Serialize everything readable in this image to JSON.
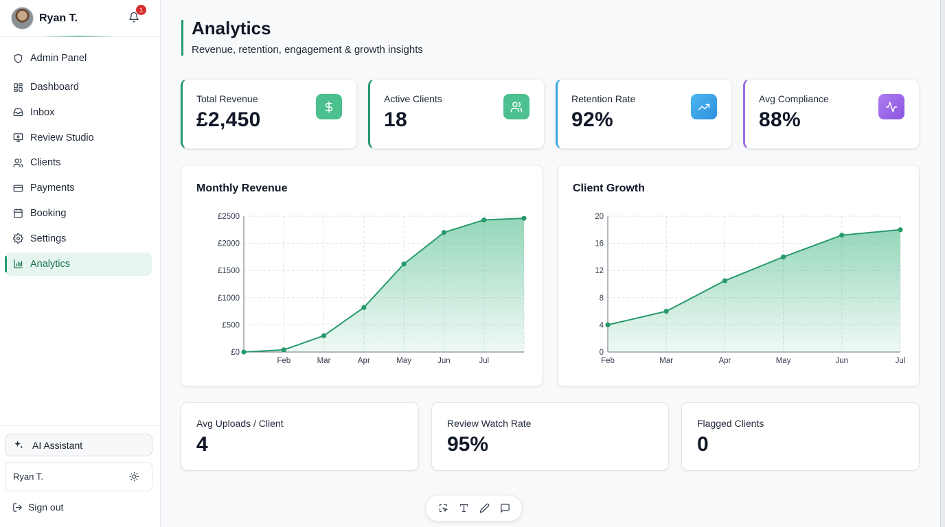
{
  "sidebar": {
    "user_name": "Ryan T.",
    "notification_count": "1",
    "items": [
      {
        "label": "Admin Panel",
        "icon": "shield-icon"
      },
      {
        "label": "Dashboard",
        "icon": "grid-icon"
      },
      {
        "label": "Inbox",
        "icon": "inbox-icon"
      },
      {
        "label": "Review Studio",
        "icon": "monitor-icon"
      },
      {
        "label": "Clients",
        "icon": "users-icon"
      },
      {
        "label": "Payments",
        "icon": "credit-card-icon"
      },
      {
        "label": "Booking",
        "icon": "calendar-icon"
      },
      {
        "label": "Settings",
        "icon": "gear-icon"
      },
      {
        "label": "Analytics",
        "icon": "bar-chart-icon",
        "active": true
      }
    ],
    "ai_assistant_label": "AI Assistant",
    "footer_user": "Ryan T.",
    "sign_out_label": "Sign out"
  },
  "header": {
    "title": "Analytics",
    "subtitle": "Revenue, retention, engagement & growth insights"
  },
  "stats": [
    {
      "label": "Total Revenue",
      "value": "£2,450",
      "icon": "dollar-icon",
      "color": "#4cc08e"
    },
    {
      "label": "Active Clients",
      "value": "18",
      "icon": "users-icon",
      "color": "#4cc08e"
    },
    {
      "label": "Retention Rate",
      "value": "92%",
      "icon": "trending-up-icon",
      "color": "#3ba6e6"
    },
    {
      "label": "Avg Compliance",
      "value": "88%",
      "icon": "activity-icon",
      "color": "#9b6ae6"
    }
  ],
  "mini_stats": [
    {
      "label": "Avg Uploads / Client",
      "value": "4"
    },
    {
      "label": "Review Watch Rate",
      "value": "95%"
    },
    {
      "label": "Flagged Clients",
      "value": "0"
    }
  ],
  "colors": {
    "accent": "#22996c",
    "accent_light": "#e6f5ee",
    "line": "#279a6c"
  },
  "toolbar": [
    "select-area-icon",
    "text-icon",
    "pen-icon",
    "comment-icon"
  ],
  "chart_data": [
    {
      "type": "area",
      "title": "Monthly Revenue",
      "x": [
        "",
        "Feb",
        "Mar",
        "Apr",
        "May",
        "Jun",
        "Jul",
        ""
      ],
      "x_tick_labels": [
        "Feb",
        "Mar",
        "Apr",
        "May",
        "Jun",
        "Jul"
      ],
      "values": [
        0,
        40,
        300,
        820,
        1620,
        2200,
        2430,
        2460
      ],
      "y_ticks": [
        "£0",
        "£500",
        "£1000",
        "£1500",
        "£2000",
        "£2500"
      ],
      "ylim": [
        0,
        2500
      ],
      "grid": true
    },
    {
      "type": "area",
      "title": "Client Growth",
      "x": [
        "Feb",
        "Mar",
        "Apr",
        "May",
        "Jun",
        "Jul"
      ],
      "values": [
        4,
        6,
        10.5,
        14,
        17.2,
        18
      ],
      "y_ticks": [
        "0",
        "4",
        "8",
        "12",
        "16",
        "20"
      ],
      "ylim": [
        0,
        20
      ],
      "grid": true
    }
  ]
}
